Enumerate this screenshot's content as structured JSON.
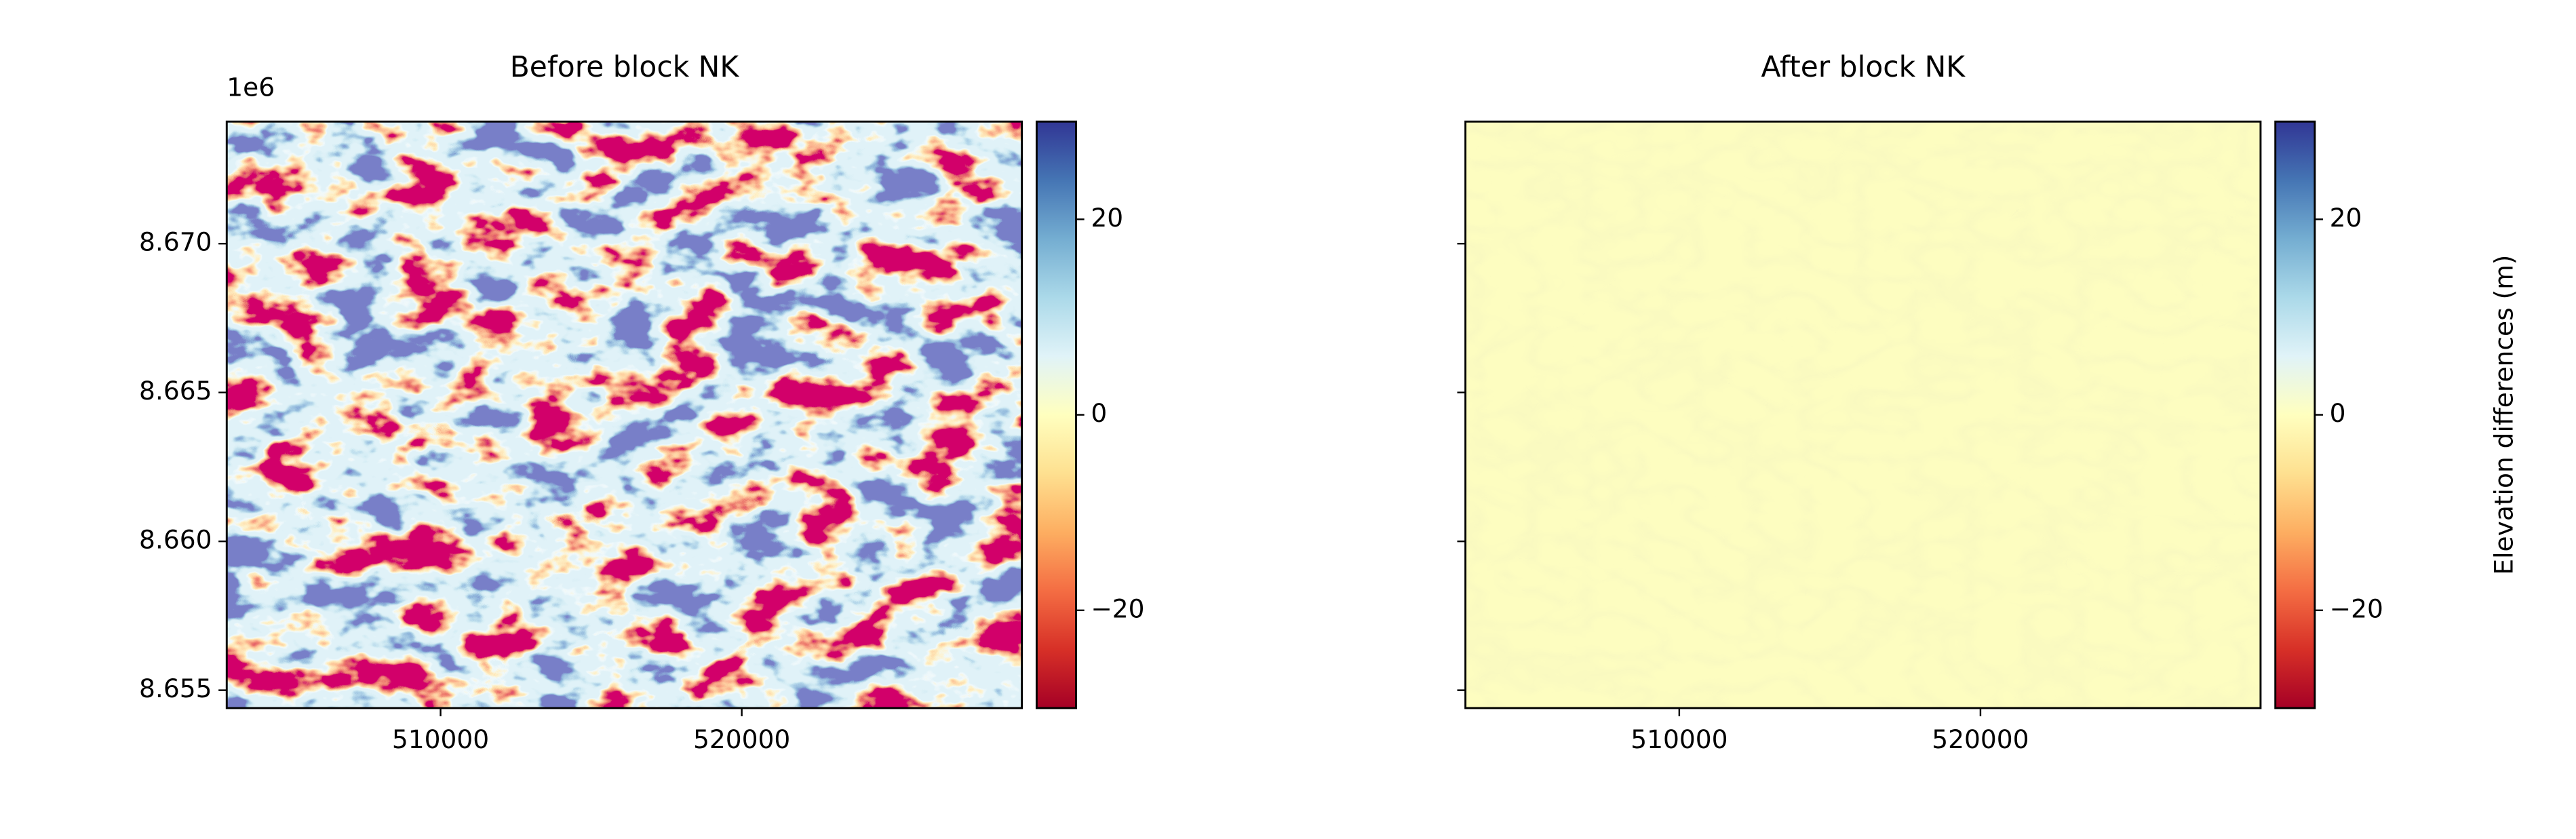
{
  "chart_data": [
    {
      "type": "image",
      "title": "Before block NK",
      "xlim": [
        502900,
        529300
      ],
      "ylim": [
        8654400,
        8674100
      ],
      "xticks": [
        510000,
        520000
      ],
      "yticks": [
        {
          "value": 8655000,
          "label": "8.655"
        },
        {
          "value": 8660000,
          "label": "8.660"
        },
        {
          "value": 8665000,
          "label": "8.665"
        },
        {
          "value": 8670000,
          "label": "8.670"
        }
      ],
      "y_offset_label": "1e6",
      "show_ytick_labels": true,
      "colorbar": {
        "clim": [
          -30,
          30
        ],
        "ticks": [
          {
            "value": -20,
            "label": "−20"
          },
          0,
          20
        ]
      }
    },
    {
      "type": "image",
      "title": "After block NK",
      "xlim": [
        502900,
        529300
      ],
      "ylim": [
        8654400,
        8674100
      ],
      "xticks": [
        510000,
        520000
      ],
      "yticks": [
        8655000,
        8660000,
        8665000,
        8670000
      ],
      "show_ytick_labels": false,
      "colorbar": {
        "clim": [
          -30,
          30
        ],
        "ticks": [
          {
            "value": -20,
            "label": "−20"
          },
          0,
          20
        ],
        "label": "Elevation differences (m)"
      }
    }
  ]
}
